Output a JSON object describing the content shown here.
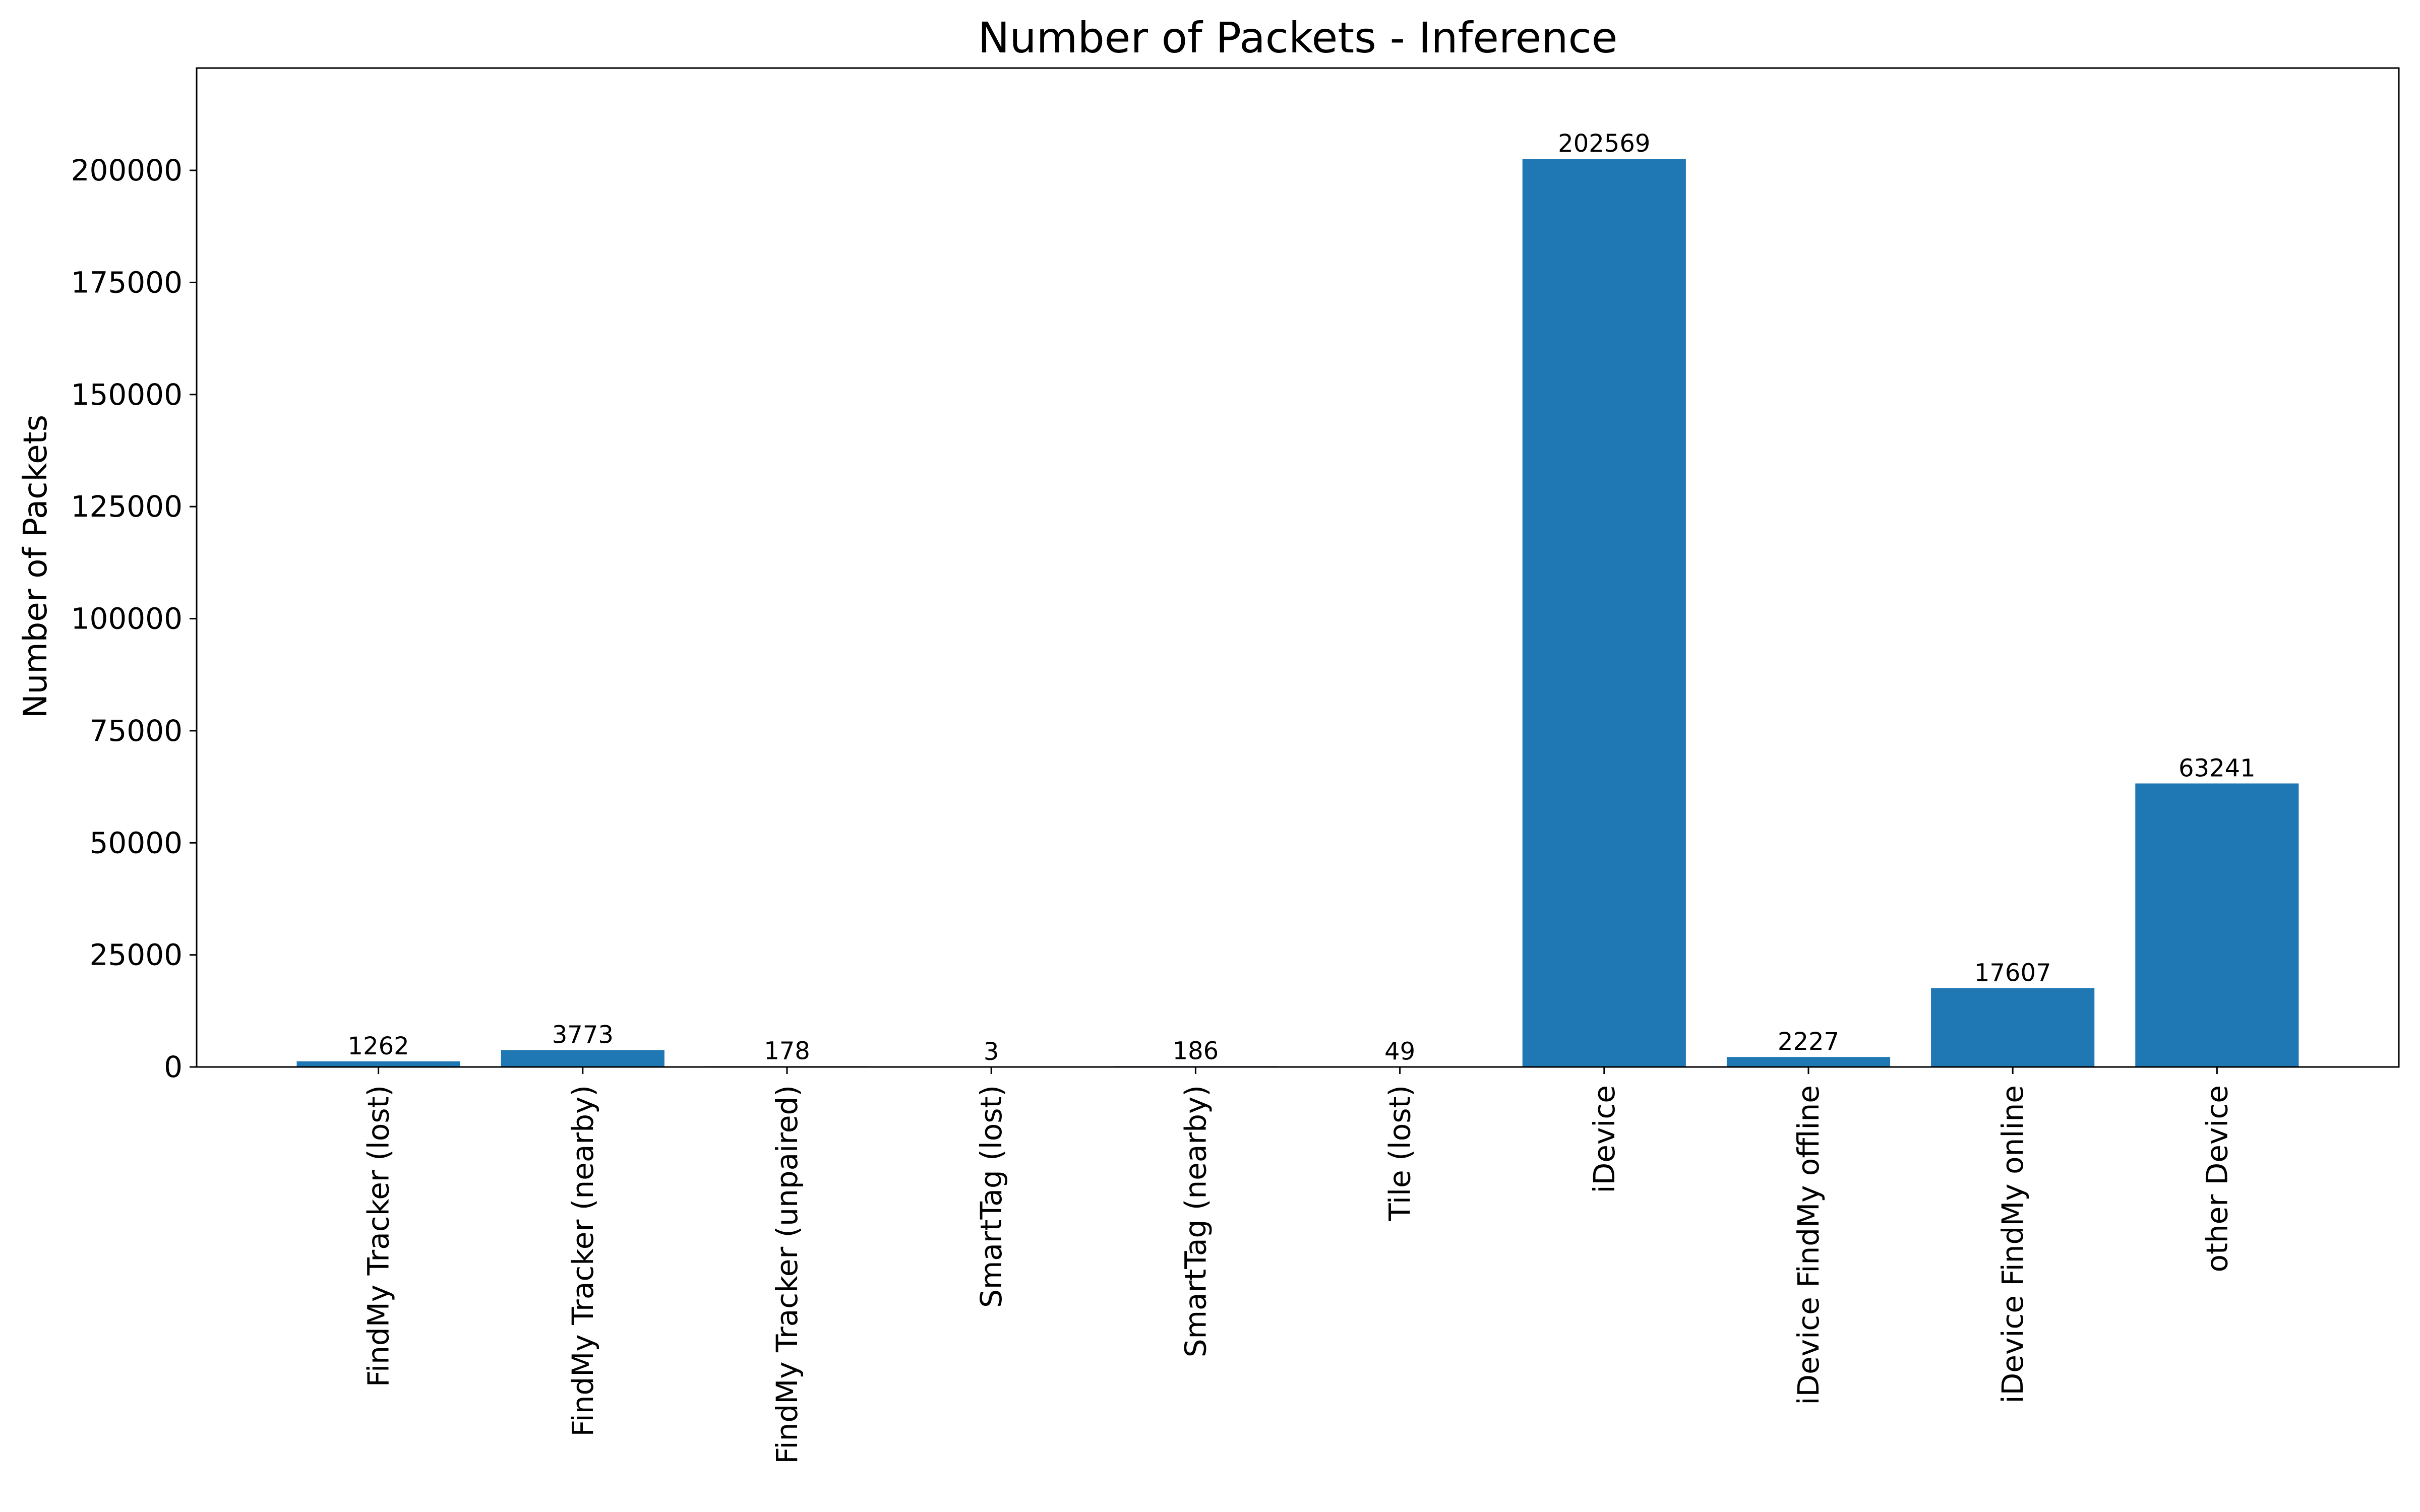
{
  "chart_data": {
    "type": "bar",
    "title": "Number of Packets - Inference",
    "xlabel": "",
    "ylabel": "Number of Packets",
    "categories": [
      "FindMy Tracker (lost)",
      "FindMy Tracker (nearby)",
      "FindMy Tracker (unpaired)",
      "SmartTag (lost)",
      "SmartTag (nearby)",
      "Tile (lost)",
      "iDevice",
      "iDevice FindMy offline",
      "iDevice FindMy online",
      "other Device"
    ],
    "values": [
      1262,
      3773,
      178,
      3,
      186,
      49,
      202569,
      2227,
      17607,
      63241
    ],
    "data_labels": [
      "1262",
      "3773",
      "178",
      "3",
      "186",
      "49",
      "202569",
      "2227",
      "17607",
      "63241"
    ],
    "ylim": [
      0,
      222826
    ],
    "yticks": [
      0,
      25000,
      50000,
      75000,
      100000,
      125000,
      150000,
      175000,
      200000
    ],
    "ytick_labels": [
      "0",
      "25000",
      "50000",
      "75000",
      "100000",
      "125000",
      "150000",
      "175000",
      "200000"
    ],
    "grid": false,
    "legend": "none",
    "bar_color": "#1f77b4",
    "x_tick_rotation_deg": -90
  }
}
